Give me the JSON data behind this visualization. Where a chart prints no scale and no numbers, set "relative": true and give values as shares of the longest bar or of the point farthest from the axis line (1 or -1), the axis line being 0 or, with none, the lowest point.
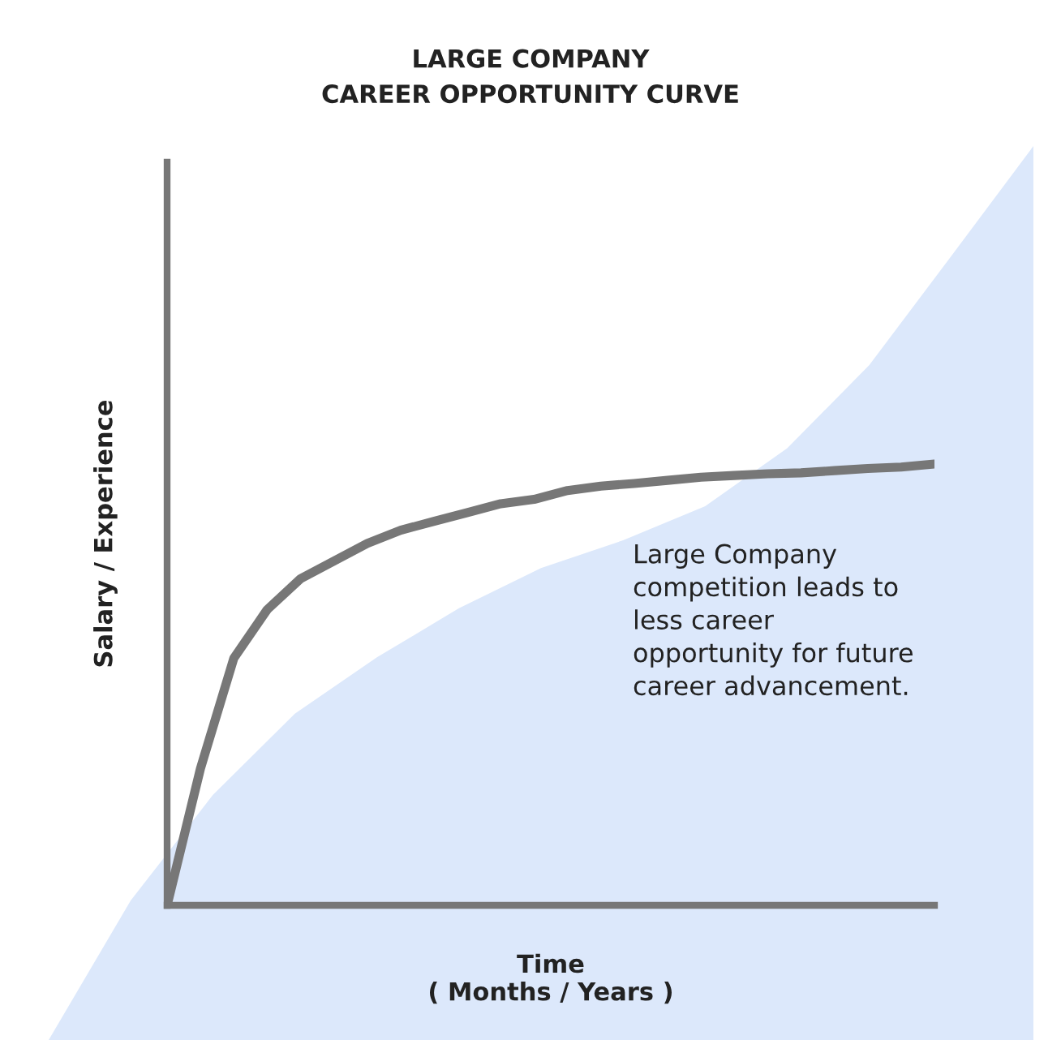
{
  "chart_data": [
    {
      "type": "line",
      "relative": true,
      "title": "LARGE COMPANY\nCAREER OPPORTUNITY CURVE",
      "xlabel": "Time\n( Months / Years )",
      "ylabel": "Salary / Experience",
      "categories": [
        null,
        null,
        null,
        null,
        null,
        null,
        null,
        null,
        null,
        null,
        null,
        null,
        null,
        null,
        null,
        null,
        null,
        null,
        null,
        null,
        null,
        null,
        null,
        null
      ],
      "series": [
        {
          "color": "#777777",
          "values": [
            0,
            0.31,
            0.56,
            0.67,
            0.74,
            0.78,
            0.82,
            0.85,
            0.87,
            0.89,
            0.91,
            0.92,
            0.94,
            0.95,
            0.956,
            0.963,
            0.97,
            0.974,
            0.978,
            0.98,
            0.985,
            0.99,
            0.993,
            1
          ]
        }
      ],
      "annotations": [
        "Large Company\ncompetition leads to\nless career\nopportunity for future\ncareer advancement."
      ],
      "grid": false,
      "legend": false,
      "marker": "none",
      "line_style": "solid"
    },
    {
      "type": "area",
      "relative": true,
      "categories": [
        null,
        null,
        null,
        null,
        null,
        null,
        null,
        null,
        null,
        null,
        null,
        null,
        null
      ],
      "series": [
        {
          "color": "#dce8fb",
          "values": [
            0,
            0.156,
            0.274,
            0.365,
            0.428,
            0.483,
            0.528,
            0.559,
            0.597,
            0.662,
            0.755,
            0.877,
            1
          ]
        }
      ]
    }
  ]
}
